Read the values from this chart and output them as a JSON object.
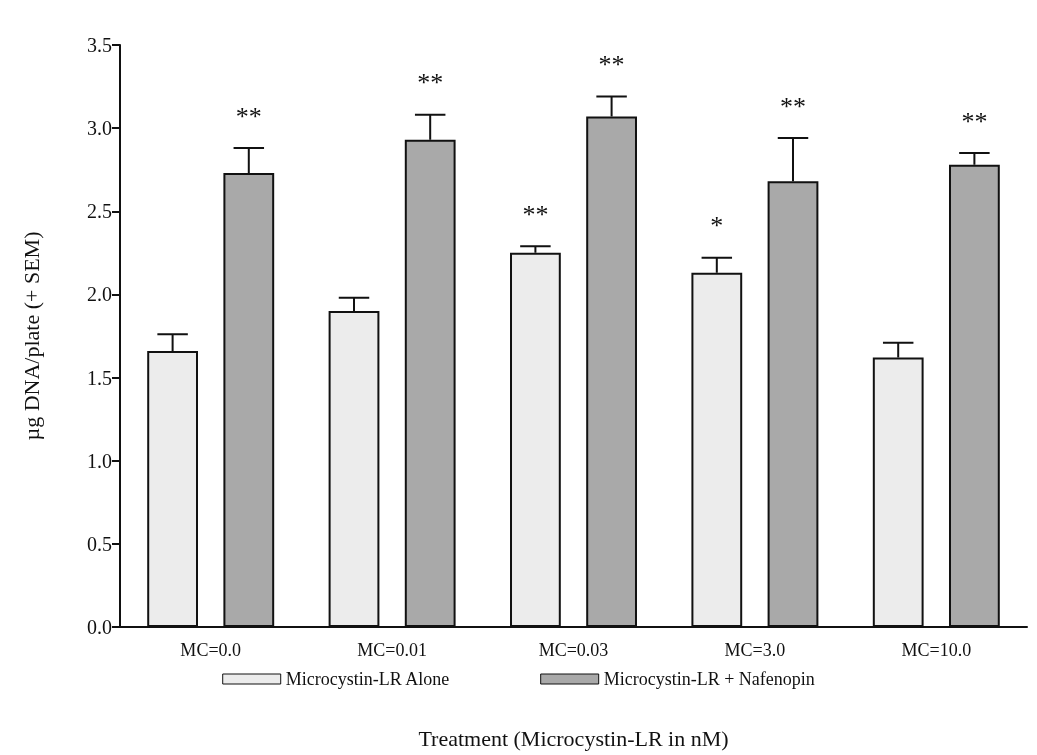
{
  "chart_data": {
    "type": "bar",
    "xlabel": "Treatment (Microcystin-LR in nM)",
    "ylabel": "µg DNA/plate (+ SEM)",
    "categories": [
      "MC=0.0",
      "MC=0.01",
      "MC=0.03",
      "MC=3.0",
      "MC=10.0"
    ],
    "series": [
      {
        "name": "Microcystin-LR Alone",
        "color": "#ececec",
        "values": [
          1.66,
          1.9,
          2.25,
          2.13,
          1.62
        ],
        "errors": [
          [
            1.66,
            1.76
          ],
          [
            1.9,
            1.98
          ],
          [
            2.25,
            2.29
          ],
          [
            2.13,
            2.22
          ],
          [
            1.62,
            1.71
          ]
        ]
      },
      {
        "name": "Microcystin-LR + Nafenopin",
        "color": "#a9a9a9",
        "values": [
          2.73,
          2.93,
          3.07,
          2.68,
          2.78
        ],
        "errors": [
          [
            2.73,
            2.88
          ],
          [
            2.93,
            3.08
          ],
          [
            3.07,
            3.19
          ],
          [
            2.68,
            2.94
          ],
          [
            2.78,
            2.85
          ]
        ]
      }
    ],
    "ylim": [
      0,
      3.5
    ],
    "yticks": [
      {
        "value": 0,
        "label": "0.0"
      },
      {
        "value": 0.5,
        "label": "0.5"
      },
      {
        "value": 1,
        "label": "1.0"
      },
      {
        "value": 1.5,
        "label": "1.5"
      },
      {
        "value": 2,
        "label": "2.0"
      },
      {
        "value": 2.5,
        "label": "2.5"
      },
      {
        "value": 3,
        "label": "3.0"
      },
      {
        "value": 3.5,
        "label": "3.5"
      }
    ],
    "grid": false,
    "legend": "bottom",
    "annotations": [
      "**",
      "**",
      "**",
      "**",
      "*",
      "**",
      "**"
    ]
  }
}
